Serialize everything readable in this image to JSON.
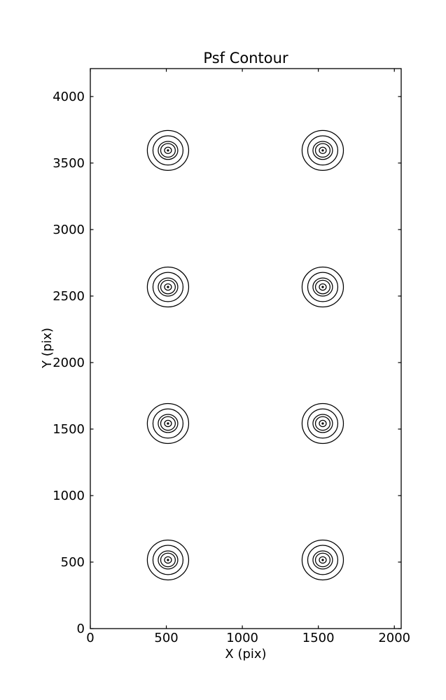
{
  "chart_data": {
    "type": "contour",
    "title": "Psf Contour",
    "xlabel": "X (pix)",
    "ylabel": "Y (pix)",
    "xlim": [
      0,
      2045
    ],
    "ylim": [
      0,
      4210
    ],
    "xticks": [
      0,
      500,
      1000,
      1500,
      2000
    ],
    "yticks": [
      0,
      500,
      1000,
      1500,
      2000,
      2500,
      3000,
      3500,
      4000
    ],
    "grid": false,
    "legend": false,
    "line_color": "#000000",
    "background_color": "#ffffff",
    "psf_centers": [
      [
        511,
        516
      ],
      [
        1529,
        516
      ],
      [
        511,
        1542
      ],
      [
        1529,
        1542
      ],
      [
        511,
        2568
      ],
      [
        1529,
        2568
      ],
      [
        511,
        3595
      ],
      [
        1529,
        3595
      ]
    ],
    "contour_rings": {
      "rx": [
        136,
        99,
        64.5,
        48,
        23
      ],
      "ry": [
        150,
        110,
        68,
        51,
        24
      ],
      "center_dot_r": 7.5
    }
  }
}
